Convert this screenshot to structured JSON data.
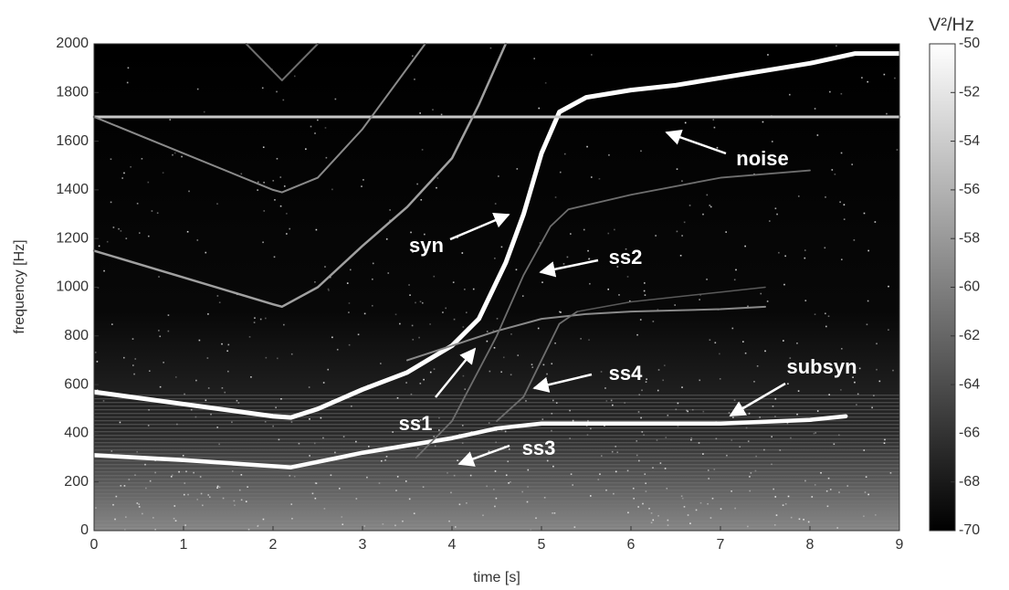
{
  "chart_data": {
    "type": "spectrogram",
    "xlabel": "time [s]",
    "ylabel": "frequency [Hz]",
    "xlim": [
      0,
      9
    ],
    "ylim": [
      0,
      2000
    ],
    "xticks": [
      0,
      1,
      2,
      3,
      4,
      5,
      6,
      7,
      8,
      9
    ],
    "yticks": [
      0,
      200,
      400,
      600,
      800,
      1000,
      1200,
      1400,
      1600,
      1800,
      2000
    ],
    "colorbar": {
      "label": "V²/Hz",
      "lim": [
        -70,
        -50
      ],
      "ticks": [
        -70,
        -68,
        -66,
        -64,
        -62,
        -60,
        -58,
        -56,
        -54,
        -52,
        -50
      ]
    },
    "series": [
      {
        "color": "#ffffff",
        "x": [
          0,
          1,
          2,
          2.2,
          2.5,
          3,
          3.5,
          4,
          4.3,
          4.6,
          4.8,
          5,
          5.2,
          5.5,
          6,
          6.5,
          7,
          7.5,
          8,
          8.5,
          9
        ],
        "values": [
          570,
          520,
          470,
          465,
          500,
          580,
          650,
          760,
          870,
          1100,
          1300,
          1550,
          1720,
          1780,
          1810,
          1830,
          1860,
          1890,
          1920,
          1960,
          1960
        ]
      },
      {
        "color": "#ffffff",
        "x": [
          0,
          1,
          2,
          2.2,
          3,
          4,
          4.5,
          5,
          6,
          7,
          8,
          8.4
        ],
        "values": [
          310,
          290,
          265,
          260,
          320,
          380,
          420,
          440,
          440,
          440,
          455,
          470
        ]
      },
      {
        "color": "#c8c8c8",
        "x": [
          0,
          9
        ],
        "values": [
          1700,
          1700
        ]
      },
      {
        "color": "#a0a0a0",
        "x": [
          0,
          1,
          2,
          2.1,
          2.5,
          3,
          3.5,
          4,
          4.3,
          4.6
        ],
        "values": [
          1150,
          1040,
          930,
          920,
          1000,
          1170,
          1330,
          1530,
          1750,
          2000
        ]
      },
      {
        "color": "#8a8a8a",
        "x": [
          0,
          1,
          2,
          2.1,
          2.5,
          3,
          3.5,
          3.7
        ],
        "values": [
          1700,
          1550,
          1400,
          1390,
          1450,
          1650,
          1900,
          2000
        ]
      },
      {
        "color": "#6e6e6e",
        "x": [
          1.7,
          2.1,
          2.5
        ],
        "values": [
          2000,
          1850,
          2000
        ]
      },
      {
        "color": "#8a8a8a",
        "x": [
          3.5,
          4,
          4.5,
          5,
          5.5,
          6,
          7,
          7.5
        ],
        "values": [
          700,
          760,
          820,
          870,
          890,
          900,
          910,
          920
        ]
      },
      {
        "color": "#6e6e6e",
        "x": [
          3.6,
          4,
          4.5,
          4.8,
          5.1,
          5.3,
          6,
          7,
          8
        ],
        "values": [
          300,
          450,
          800,
          1050,
          1250,
          1320,
          1380,
          1450,
          1480
        ]
      },
      {
        "color": "#6e6e6e",
        "x": [
          4.5,
          4.8,
          5,
          5.2,
          5.4
        ],
        "values": [
          450,
          550,
          700,
          850,
          900
        ]
      },
      {
        "color": "#5a5a5a",
        "x": [
          5.4,
          6,
          7,
          7.5
        ],
        "values": [
          900,
          940,
          980,
          1000
        ]
      }
    ],
    "annotations": [
      "noise",
      "syn",
      "ss2",
      "ss4",
      "subsyn",
      "ss1",
      "ss3"
    ]
  }
}
